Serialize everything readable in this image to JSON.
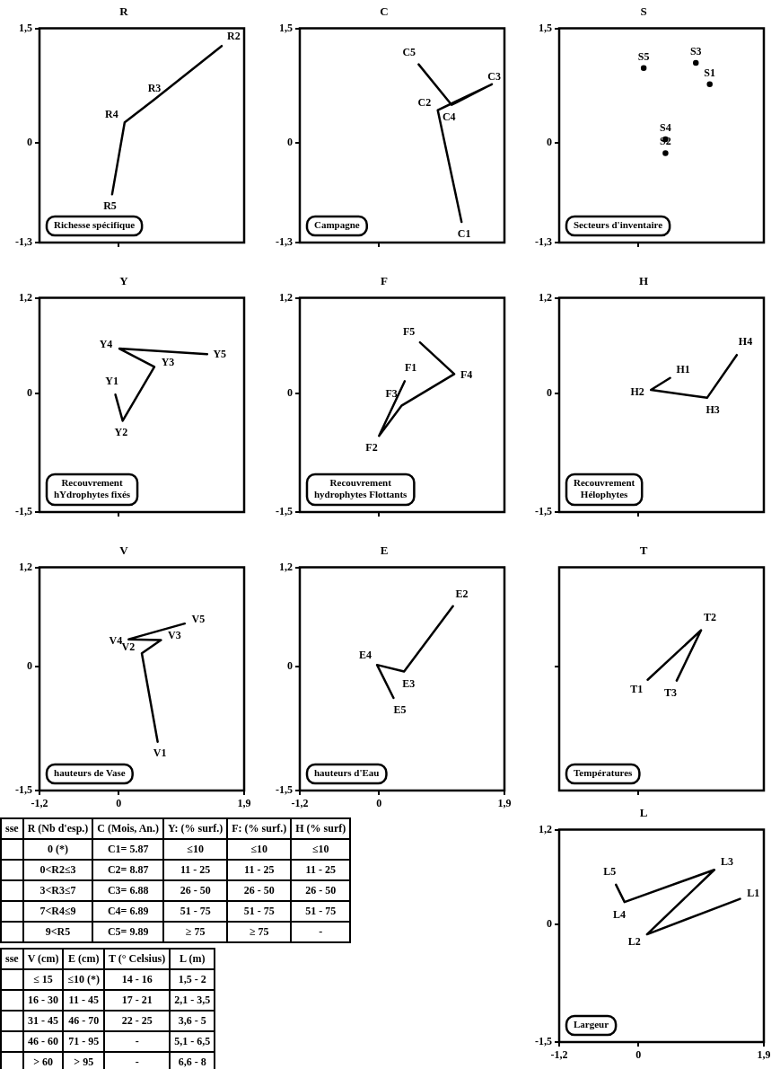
{
  "chart_data": [
    {
      "type": "line",
      "title": "R",
      "color": "#000000",
      "marker": "none",
      "tick_labels": "y",
      "xlim": [
        -1.2,
        1.9
      ],
      "ylim": [
        -1.3,
        1.5
      ],
      "xticks": [
        {
          "value": 0,
          "label": null
        }
      ],
      "yticks": [
        {
          "value": -1.3,
          "label": "-1,3"
        },
        {
          "value": 0,
          "label": "0"
        },
        {
          "value": 1.5,
          "label": "1,5"
        }
      ],
      "x": [
        1.56,
        0.54,
        0.09,
        -0.1
      ],
      "values": [
        1.27,
        0.57,
        0.27,
        -0.67
      ],
      "value_labels": [
        "R2",
        "R3",
        "R4",
        "R5"
      ],
      "annotations": [
        "Richesse spécifique"
      ]
    },
    {
      "type": "line",
      "title": "C",
      "color": "#000000",
      "marker": "none",
      "tick_labels": "y",
      "xlim": [
        -1.2,
        1.9
      ],
      "ylim": [
        -1.3,
        1.5
      ],
      "xticks": [
        {
          "value": 0,
          "label": null
        }
      ],
      "yticks": [
        {
          "value": -1.3,
          "label": "-1,3"
        },
        {
          "value": 0,
          "label": "0"
        },
        {
          "value": 1.5,
          "label": "1,5"
        }
      ],
      "x": [
        1.25,
        0.89,
        1.71,
        1.1,
        0.6
      ],
      "values": [
        -1.03,
        0.43,
        0.77,
        0.5,
        1.03
      ],
      "value_labels": [
        "C1",
        "C2",
        "C3",
        "C4",
        "C5"
      ],
      "annotations": [
        "Campagne"
      ]
    },
    {
      "type": "scatter",
      "title": "S",
      "color": "#000000",
      "marker": "circle",
      "tick_labels": "y",
      "xlim": [
        -1.2,
        1.9
      ],
      "ylim": [
        -1.3,
        1.5
      ],
      "xticks": [
        {
          "value": 0,
          "label": null
        }
      ],
      "yticks": [
        {
          "value": -1.3,
          "label": "-1,3"
        },
        {
          "value": 0,
          "label": "0"
        },
        {
          "value": 1.5,
          "label": "1,5"
        }
      ],
      "x": [
        1.08,
        0.41,
        0.87,
        0.41,
        0.08
      ],
      "values": [
        0.77,
        -0.13,
        1.05,
        0.05,
        0.98
      ],
      "value_labels": [
        "S1",
        "S2",
        "S3",
        "S4",
        "S5"
      ],
      "annotations": [
        "Secteurs d'inventaire"
      ]
    },
    {
      "type": "line",
      "title": "Y",
      "color": "#000000",
      "marker": "none",
      "tick_labels": "y",
      "xlim": [
        -1.2,
        1.9
      ],
      "ylim": [
        -1.5,
        1.2
      ],
      "xticks": [
        {
          "value": 0,
          "label": null
        }
      ],
      "yticks": [
        {
          "value": -1.5,
          "label": "-1,5"
        },
        {
          "value": 0,
          "label": "0"
        },
        {
          "value": 1.2,
          "label": "1,2"
        }
      ],
      "x": [
        -0.05,
        0.06,
        0.54,
        0.01,
        1.34
      ],
      "values": [
        -0.02,
        -0.35,
        0.33,
        0.56,
        0.49
      ],
      "value_labels": [
        "Y1",
        "Y2",
        "Y3",
        "Y4",
        "Y5"
      ],
      "annotations": [
        "Recouvrement hYdrophytes fixés"
      ]
    },
    {
      "type": "line",
      "title": "F",
      "color": "#000000",
      "marker": "none",
      "tick_labels": "y",
      "xlim": [
        -1.2,
        1.9
      ],
      "ylim": [
        -1.5,
        1.2
      ],
      "xticks": [
        {
          "value": 0,
          "label": null
        }
      ],
      "yticks": [
        {
          "value": -1.5,
          "label": "-1,5"
        },
        {
          "value": 0,
          "label": "0"
        },
        {
          "value": 1.2,
          "label": "1,2"
        }
      ],
      "x": [
        0.39,
        0.0,
        0.34,
        1.14,
        0.62
      ],
      "values": [
        0.15,
        -0.54,
        -0.16,
        0.24,
        0.64
      ],
      "value_labels": [
        "F1",
        "F2",
        "F3",
        "F4",
        "F5"
      ],
      "annotations": [
        "Recouvrement hydrophytes Flottants"
      ]
    },
    {
      "type": "line",
      "title": "H",
      "color": "#000000",
      "marker": "none",
      "tick_labels": "y",
      "xlim": [
        -1.2,
        1.9
      ],
      "ylim": [
        -1.5,
        1.2
      ],
      "xticks": [
        {
          "value": 0,
          "label": null
        }
      ],
      "yticks": [
        {
          "value": -1.5,
          "label": "-1,5"
        },
        {
          "value": 0,
          "label": "0"
        },
        {
          "value": 1.2,
          "label": "1,2"
        }
      ],
      "x": [
        0.48,
        0.19,
        1.04,
        1.49
      ],
      "values": [
        0.19,
        0.04,
        -0.06,
        0.48
      ],
      "value_labels": [
        "H1",
        "H2",
        "H3",
        "H4"
      ],
      "annotations": [
        "Recouvrement Hélophytes"
      ]
    },
    {
      "type": "line",
      "title": "V",
      "color": "#000000",
      "marker": "none",
      "xlim": [
        -1.2,
        1.9
      ],
      "ylim": [
        -1.5,
        1.2
      ],
      "xticks": [
        {
          "value": -1.2,
          "label": "-1,2"
        },
        {
          "value": 0,
          "label": "0"
        },
        {
          "value": 1.9,
          "label": "1,9"
        }
      ],
      "yticks": [
        {
          "value": -1.5,
          "label": "-1,5"
        },
        {
          "value": 0,
          "label": "0"
        },
        {
          "value": 1.2,
          "label": "1,2"
        }
      ],
      "x": [
        0.59,
        0.35,
        0.64,
        0.15,
        1.0
      ],
      "values": [
        -0.91,
        0.16,
        0.32,
        0.33,
        0.52
      ],
      "value_labels": [
        "V1",
        "V2",
        "V3",
        "V4",
        "V5"
      ],
      "annotations": [
        "hauteurs de Vase"
      ]
    },
    {
      "type": "line",
      "title": "E",
      "color": "#000000",
      "marker": "none",
      "xlim": [
        -1.2,
        1.9
      ],
      "ylim": [
        -1.5,
        1.2
      ],
      "xticks": [
        {
          "value": -1.2,
          "label": "-1,2"
        },
        {
          "value": 0,
          "label": "0"
        },
        {
          "value": 1.9,
          "label": "1,9"
        }
      ],
      "yticks": [
        {
          "value": -1.5,
          "label": "-1,5"
        },
        {
          "value": 0,
          "label": "0"
        },
        {
          "value": 1.2,
          "label": "1,2"
        }
      ],
      "x": [
        1.12,
        0.38,
        -0.03,
        0.22
      ],
      "values": [
        0.73,
        -0.06,
        0.02,
        -0.38
      ],
      "value_labels": [
        "E2",
        "E3",
        "E4",
        "E5"
      ],
      "annotations": [
        "hauteurs d'Eau"
      ]
    },
    {
      "type": "line",
      "title": "T",
      "color": "#000000",
      "marker": "none",
      "tick_labels": false,
      "xlim": [
        -1.2,
        1.9
      ],
      "ylim": [
        -1.5,
        1.2
      ],
      "xticks": [
        {
          "value": 0,
          "label": null
        }
      ],
      "yticks": [
        {
          "value": 0,
          "label": null
        }
      ],
      "x": [
        0.14,
        0.95,
        0.58
      ],
      "values": [
        -0.16,
        0.44,
        -0.17
      ],
      "value_labels": [
        "T1",
        "T2",
        "T3"
      ],
      "annotations": [
        "Températures"
      ]
    },
    {
      "type": "line",
      "title": "L",
      "color": "#000000",
      "marker": "none",
      "xlim": [
        -1.2,
        1.9
      ],
      "ylim": [
        -1.5,
        1.2
      ],
      "xticks": [
        {
          "value": -1.2,
          "label": "-1,2"
        },
        {
          "value": 0,
          "label": "0"
        },
        {
          "value": 1.9,
          "label": "1,9"
        }
      ],
      "yticks": [
        {
          "value": -1.5,
          "label": "-1,5"
        },
        {
          "value": 0,
          "label": "0"
        },
        {
          "value": 1.2,
          "label": "1,2"
        }
      ],
      "x": [
        1.54,
        0.13,
        1.15,
        -0.21,
        -0.34
      ],
      "values": [
        0.32,
        -0.13,
        0.69,
        0.28,
        0.5
      ],
      "value_labels": [
        "L1",
        "L2",
        "L3",
        "L4",
        "L5"
      ],
      "annotations": [
        "Largeur"
      ]
    },
    {
      "type": "other",
      "categories": [
        "sse",
        "R (Nb d'esp.)",
        "C (Mois, An.)",
        "Y: (% surf.)",
        "F: (% surf.)",
        "H (% surf)"
      ],
      "cell_labels": [
        [
          null,
          "0 (*)",
          "C1= 5.87",
          "≤10",
          "≤10",
          "≤10"
        ],
        [
          null,
          "0<R2≤3",
          "C2= 8.87",
          "11 - 25",
          "11 - 25",
          "11 - 25"
        ],
        [
          null,
          "3<R3≤7",
          "C3= 6.88",
          "26 - 50",
          "26 - 50",
          "26 - 50"
        ],
        [
          null,
          "7<R4≤9",
          "C4= 6.89",
          "51 - 75",
          "51 - 75",
          "51 - 75"
        ],
        [
          null,
          "9<R5",
          "C5= 9.89",
          "≥ 75",
          "≥ 75",
          "-"
        ]
      ]
    },
    {
      "type": "other",
      "categories": [
        "sse",
        "V (cm)",
        "E (cm)",
        "T (° Celsius)",
        "L (m)"
      ],
      "cell_labels": [
        [
          null,
          "≤ 15",
          "≤10 (*)",
          "14 - 16",
          "1,5 - 2"
        ],
        [
          null,
          "16 - 30",
          "11 - 45",
          "17 - 21",
          "2,1 - 3,5"
        ],
        [
          null,
          "31 - 45",
          "46 - 70",
          "22 - 25",
          "3,6 - 5"
        ],
        [
          null,
          "46 - 60",
          "71 - 95",
          "-",
          "5,1 - 6,5"
        ],
        [
          null,
          "> 60",
          "> 95",
          "-",
          "6,6 - 8"
        ]
      ]
    }
  ]
}
